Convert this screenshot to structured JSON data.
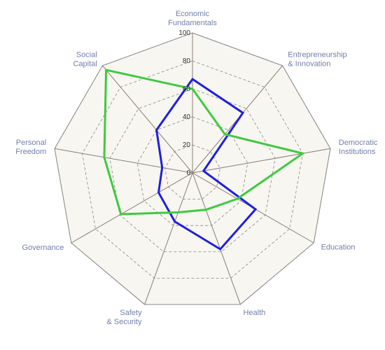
{
  "chart_data": {
    "type": "radar",
    "axes": [
      [
        "Economic",
        "Fundamentals"
      ],
      [
        "Entrepreneurship",
        "& Innovation"
      ],
      [
        "Democratic",
        "Institutions"
      ],
      [
        "Education"
      ],
      [
        "Health"
      ],
      [
        "Safety",
        "& Security"
      ],
      [
        "Governance"
      ],
      [
        "Personal",
        "Freedom"
      ],
      [
        "Social",
        "Capital"
      ]
    ],
    "rlim": [
      0,
      100
    ],
    "ticks": [
      "0",
      "20",
      "40",
      "60",
      "80",
      "100"
    ],
    "grid": true,
    "series": [
      {
        "color": "#1f1fdd",
        "values": [
          67,
          56,
          8,
          52,
          58,
          37,
          28,
          22,
          40
        ]
      },
      {
        "color": "#3fc93f",
        "values": [
          60,
          36,
          80,
          37,
          28,
          30,
          59,
          64,
          96
        ]
      }
    ],
    "style": {
      "plot_fill": "#f7f6f0",
      "grid_color": "#888888",
      "spoke_color": "#8b7d7a",
      "label_color": "#7180a8",
      "tick_zero_color": "#b03a2e"
    }
  }
}
